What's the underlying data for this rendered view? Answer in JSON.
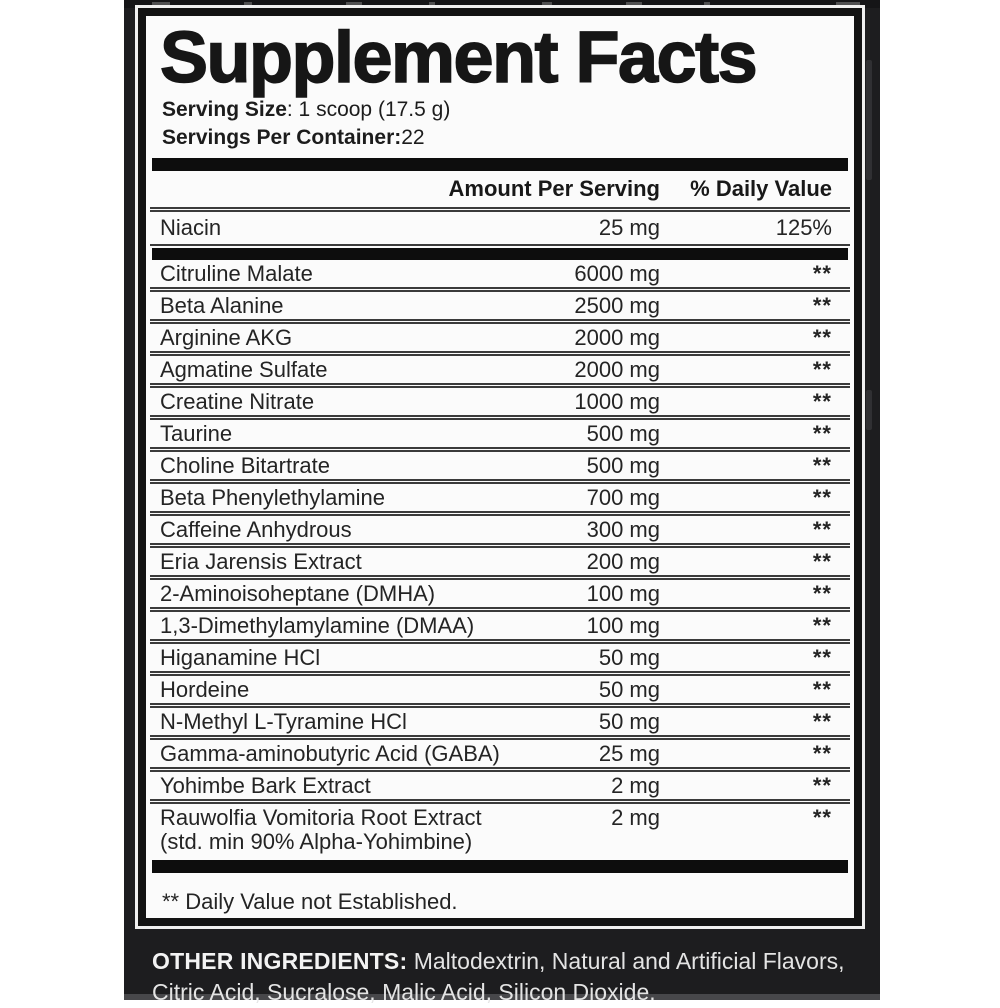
{
  "label": {
    "title": "Supplement Facts",
    "serving_size_label": "Serving Size",
    "serving_size_value": ": 1 scoop (17.5 g)",
    "servings_per_container_label": "Servings Per Container:",
    "servings_per_container_value": "22",
    "header": {
      "amount": "Amount Per Serving",
      "daily_value": "% Daily Value"
    },
    "rows": [
      {
        "name": "Niacin",
        "amount": "25 mg",
        "dv": "125%"
      },
      {
        "name": "Citruline Malate",
        "amount": "6000 mg",
        "dv": "**"
      },
      {
        "name": "Beta Alanine",
        "amount": "2500 mg",
        "dv": "**"
      },
      {
        "name": "Arginine AKG",
        "amount": "2000 mg",
        "dv": "**"
      },
      {
        "name": "Agmatine Sulfate",
        "amount": "2000 mg",
        "dv": "**"
      },
      {
        "name": "Creatine Nitrate",
        "amount": "1000 mg",
        "dv": "**"
      },
      {
        "name": "Taurine",
        "amount": "500 mg",
        "dv": "**"
      },
      {
        "name": "Choline Bitartrate",
        "amount": "500 mg",
        "dv": "**"
      },
      {
        "name": "Beta Phenylethylamine",
        "amount": "700 mg",
        "dv": "**"
      },
      {
        "name": "Caffeine Anhydrous",
        "amount": "300 mg",
        "dv": "**"
      },
      {
        "name": "Eria Jarensis Extract",
        "amount": "200 mg",
        "dv": "**"
      },
      {
        "name": "2-Aminoisoheptane (DMHA)",
        "amount": "100 mg",
        "dv": "**"
      },
      {
        "name": "1,3-Dimethylamylamine (DMAA)",
        "amount": "100 mg",
        "dv": "**"
      },
      {
        "name": "Higanamine HCl",
        "amount": "50 mg",
        "dv": "**"
      },
      {
        "name": "Hordeine",
        "amount": "50 mg",
        "dv": "**"
      },
      {
        "name": "N-Methyl L-Tyramine HCl",
        "amount": "50 mg",
        "dv": "**"
      },
      {
        "name": "Gamma-aminobutyric Acid (GABA)",
        "amount": "25 mg",
        "dv": "**"
      },
      {
        "name": "Yohimbe Bark Extract",
        "amount": "2 mg",
        "dv": "**"
      },
      {
        "name": "Rauwolfia Vomitoria Root Extract",
        "name2": "(std. min 90% Alpha-Yohimbine)",
        "amount": "2 mg",
        "dv": "**"
      }
    ],
    "footnote": "** Daily Value not Established.",
    "other_ingredients": {
      "label": "OTHER INGREDIENTS:",
      "line1_rest": " Maltodextrin, Natural and Artificial Flavors,",
      "line2": "Citric Acid, Sucralose, Malic Acid, Silicon Dioxide."
    },
    "colors": {
      "surround": "#1d1d1f",
      "panel_bg": "#fbfbfb",
      "divider_bar": "#0d0d0d",
      "text": "#242424",
      "inverse_text": "#e4e4e4"
    }
  }
}
